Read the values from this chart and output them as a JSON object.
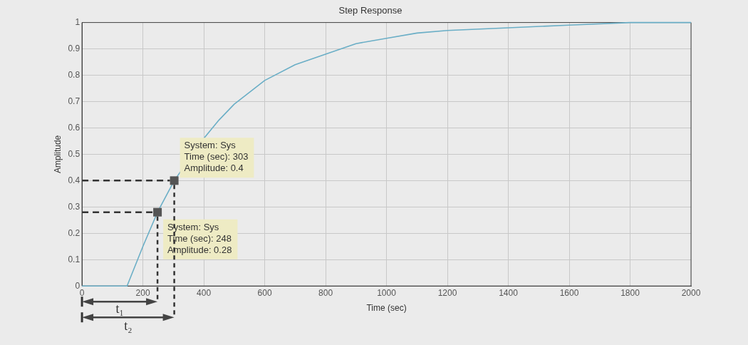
{
  "chart_data": {
    "type": "line",
    "title": "Step Response",
    "xlabel": "Time (sec)",
    "ylabel": "Amplitude",
    "x": [
      0,
      148,
      200,
      248,
      303,
      400,
      450,
      500,
      600,
      700,
      800,
      900,
      1000,
      1100,
      1200,
      1400,
      1600,
      1800,
      2000
    ],
    "series": [
      {
        "color": "#6aaec6",
        "values": [
          0,
          0,
          0.15,
          0.28,
          0.4,
          0.56,
          0.63,
          0.69,
          0.78,
          0.84,
          0.88,
          0.92,
          0.94,
          0.96,
          0.97,
          0.98,
          0.99,
          1.0,
          1.0
        ]
      }
    ],
    "xlim": [
      0,
      2000
    ],
    "xticks": [
      0,
      200,
      400,
      600,
      800,
      1000,
      1200,
      1400,
      1600,
      1800,
      2000
    ],
    "ylim": [
      0,
      1
    ],
    "yticks": [
      0,
      0.1,
      0.2,
      0.3,
      0.4,
      0.5,
      0.6,
      0.7,
      0.8,
      0.9,
      1
    ],
    "grid": true,
    "marker": "none",
    "line_style": "solid",
    "annotations": [
      {
        "text": "System: Sys\nTime (sec): 303\nAmplitude: 0.4",
        "x": 303,
        "y": 0.4
      },
      {
        "text": "System: Sys\nTime (sec): 248\nAmplitude: 0.28",
        "x": 248,
        "y": 0.28
      },
      "t₁",
      "t₂"
    ]
  }
}
